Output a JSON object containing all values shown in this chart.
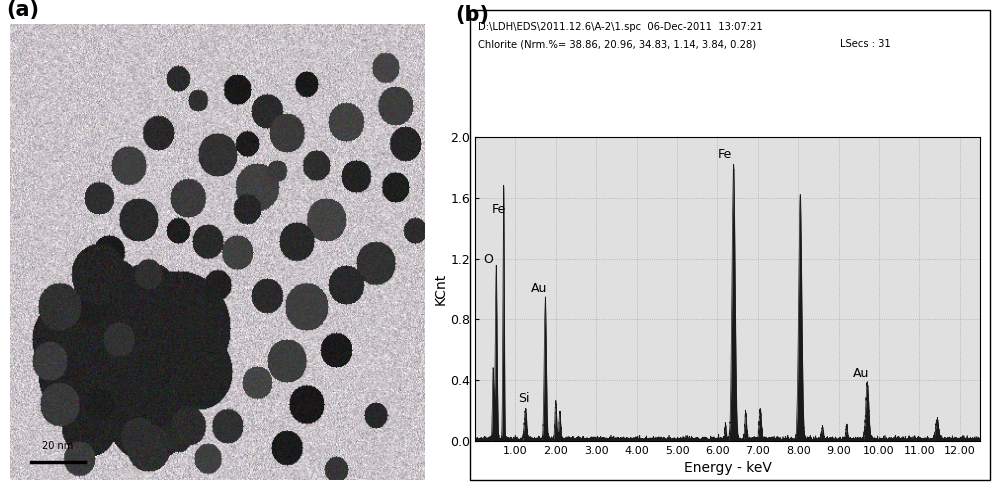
{
  "title_a": "(a)",
  "title_b": "(b)",
  "header_line1": "D:\\LDH\\EDS\\2011.12.6\\A-2\\1.spc  06-Dec-2011  13:07:21",
  "header_line2": "Chlorite (Nrm.%= 38.86, 20.96, 34.83, 1.14, 3.84, 0.28)",
  "header_lsecs": "LSecs : 31",
  "ylabel": "KCnt",
  "xlabel": "Energy - keV",
  "ylim": [
    0.0,
    2.0
  ],
  "xlim": [
    0.0,
    12.5
  ],
  "yticks": [
    0.0,
    0.4,
    0.8,
    1.2,
    1.6,
    2.0
  ],
  "xticks": [
    1.0,
    2.0,
    3.0,
    4.0,
    5.0,
    6.0,
    7.0,
    8.0,
    9.0,
    10.0,
    11.0,
    12.0
  ],
  "plot_bg": "#e0e0e0",
  "line_color": "#1a1a1a",
  "scale_bar_label": "20 nm"
}
